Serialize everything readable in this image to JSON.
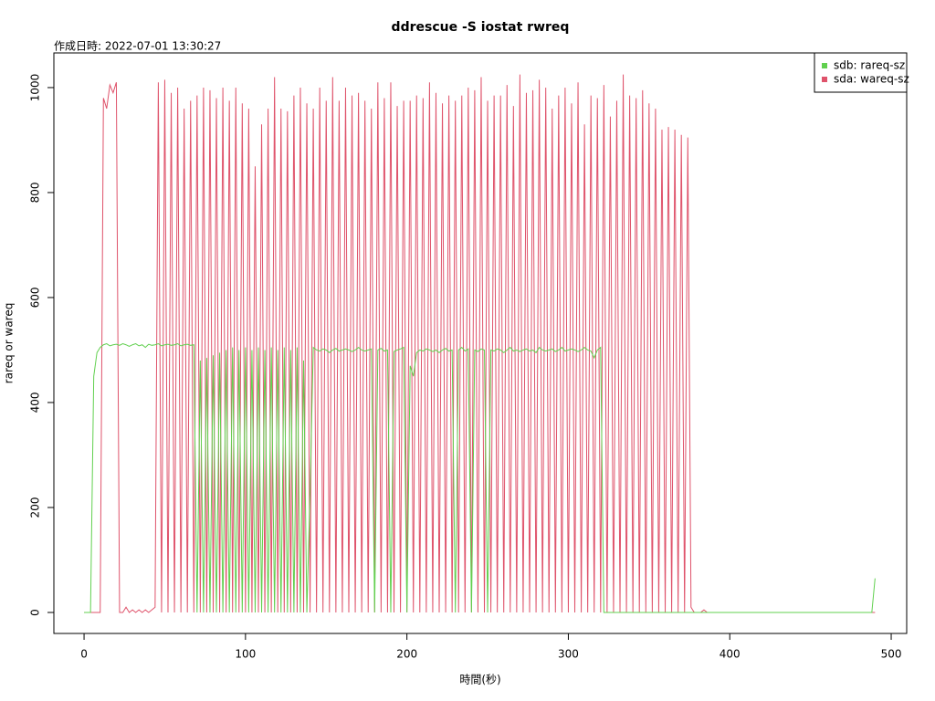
{
  "chart_data": {
    "type": "line",
    "title": "ddrescue -S iostat rwreq",
    "subtitle": "作成日時: 2022-07-01 13:30:27",
    "x_label": "時間(秒)",
    "y_label": "rareq or wareq",
    "legend": "topright",
    "xlim": [
      -18.7,
      509.6
    ],
    "ylim": [
      -40,
      1066
    ],
    "xticks": [
      0,
      100,
      200,
      300,
      400,
      500
    ],
    "yticks": [
      0,
      200,
      400,
      600,
      800,
      1000
    ],
    "x": [
      0,
      2,
      4,
      6,
      8,
      10,
      12,
      14,
      16,
      18,
      20,
      22,
      24,
      26,
      28,
      30,
      32,
      34,
      36,
      38,
      40,
      42,
      44,
      46,
      48,
      50,
      52,
      54,
      56,
      58,
      60,
      62,
      64,
      66,
      68,
      70,
      72,
      74,
      76,
      78,
      80,
      82,
      84,
      86,
      88,
      90,
      92,
      94,
      96,
      98,
      100,
      102,
      104,
      106,
      108,
      110,
      112,
      114,
      116,
      118,
      120,
      122,
      124,
      126,
      128,
      130,
      132,
      134,
      136,
      138,
      140,
      142,
      144,
      146,
      148,
      150,
      152,
      154,
      156,
      158,
      160,
      162,
      164,
      166,
      168,
      170,
      172,
      174,
      176,
      178,
      180,
      182,
      184,
      186,
      188,
      190,
      192,
      194,
      196,
      198,
      200,
      202,
      204,
      206,
      208,
      210,
      212,
      214,
      216,
      218,
      220,
      222,
      224,
      226,
      228,
      230,
      232,
      234,
      236,
      238,
      240,
      242,
      244,
      246,
      248,
      250,
      252,
      254,
      256,
      258,
      260,
      262,
      264,
      266,
      268,
      270,
      272,
      274,
      276,
      278,
      280,
      282,
      284,
      286,
      288,
      290,
      292,
      294,
      296,
      298,
      300,
      302,
      304,
      306,
      308,
      310,
      312,
      314,
      316,
      318,
      320,
      322,
      324,
      326,
      328,
      330,
      332,
      334,
      336,
      338,
      340,
      342,
      344,
      346,
      348,
      350,
      352,
      354,
      356,
      358,
      360,
      362,
      364,
      366,
      368,
      370,
      372,
      374,
      376,
      378,
      380,
      382,
      384,
      386,
      388,
      390,
      392,
      394,
      396,
      398,
      400,
      402,
      404,
      406,
      408,
      410,
      412,
      414,
      416,
      418,
      420,
      422,
      424,
      426,
      428,
      430,
      432,
      434,
      436,
      438,
      440,
      442,
      444,
      446,
      448,
      450,
      452,
      454,
      456,
      458,
      460,
      462,
      464,
      466,
      468,
      470,
      472,
      474,
      476,
      478,
      480,
      482,
      484,
      486,
      488,
      490
    ],
    "series": [
      {
        "name": "sda: wareq-sz",
        "color": "#DF536B",
        "values": [
          0,
          0,
          0,
          0,
          0,
          0,
          980,
          960,
          1005,
          990,
          1010,
          0,
          0,
          10,
          0,
          5,
          0,
          5,
          0,
          5,
          0,
          5,
          10,
          1010,
          0,
          1015,
          0,
          990,
          0,
          1000,
          0,
          960,
          0,
          975,
          0,
          985,
          0,
          1000,
          0,
          995,
          0,
          980,
          0,
          1000,
          0,
          975,
          0,
          1000,
          0,
          970,
          0,
          960,
          0,
          850,
          0,
          930,
          0,
          960,
          0,
          1020,
          0,
          960,
          0,
          955,
          0,
          985,
          0,
          1000,
          0,
          970,
          0,
          960,
          0,
          1000,
          0,
          975,
          0,
          1020,
          0,
          975,
          0,
          1000,
          0,
          985,
          0,
          990,
          0,
          975,
          0,
          960,
          0,
          1010,
          0,
          980,
          0,
          1010,
          0,
          965,
          0,
          975,
          0,
          975,
          0,
          985,
          0,
          980,
          0,
          1010,
          0,
          990,
          0,
          970,
          0,
          985,
          0,
          975,
          0,
          985,
          0,
          1000,
          0,
          995,
          0,
          1020,
          0,
          975,
          0,
          985,
          0,
          985,
          0,
          1005,
          0,
          965,
          0,
          1025,
          0,
          990,
          0,
          995,
          0,
          1015,
          0,
          1000,
          0,
          960,
          0,
          985,
          0,
          1000,
          0,
          970,
          0,
          1010,
          0,
          930,
          0,
          985,
          0,
          980,
          0,
          1005,
          0,
          945,
          0,
          975,
          0,
          1025,
          0,
          985,
          0,
          980,
          0,
          995,
          0,
          970,
          0,
          960,
          0,
          920,
          0,
          925,
          0,
          920,
          0,
          910,
          0,
          905,
          10,
          0,
          0,
          0,
          5,
          0,
          0,
          0,
          0,
          0,
          0,
          0,
          0,
          0,
          0,
          0,
          0,
          0,
          0,
          0,
          0,
          0,
          0,
          0,
          0,
          0,
          0,
          0,
          0,
          0,
          0,
          0,
          0,
          0,
          0,
          0,
          0,
          0,
          0,
          0,
          0,
          0,
          0,
          0,
          0,
          0,
          0,
          0,
          0,
          0,
          0,
          0,
          0,
          0,
          0,
          0,
          0,
          0
        ]
      },
      {
        "name": "sdb: rareq-sz",
        "color": "#61D04F",
        "values": [
          0,
          0,
          0,
          450,
          495,
          505,
          510,
          512,
          508,
          510,
          511,
          509,
          512,
          510,
          507,
          510,
          512,
          508,
          510,
          505,
          511,
          509,
          510,
          512,
          508,
          510,
          511,
          509,
          510,
          512,
          508,
          510,
          511,
          509,
          510,
          0,
          480,
          0,
          485,
          0,
          490,
          0,
          495,
          0,
          500,
          0,
          505,
          0,
          500,
          0,
          505,
          0,
          500,
          0,
          505,
          0,
          500,
          0,
          505,
          0,
          500,
          0,
          505,
          0,
          500,
          0,
          505,
          0,
          480,
          0,
          230,
          505,
          500,
          498,
          502,
          500,
          495,
          500,
          503,
          498,
          500,
          502,
          500,
          497,
          500,
          505,
          500,
          498,
          500,
          502,
          0,
          500,
          503,
          498,
          500,
          0,
          497,
          500,
          502,
          505,
          0,
          470,
          450,
          495,
          500,
          498,
          502,
          500,
          497,
          500,
          495,
          500,
          503,
          498,
          500,
          0,
          500,
          505,
          498,
          502,
          0,
          500,
          497,
          502,
          500,
          0,
          500,
          498,
          502,
          500,
          495,
          500,
          505,
          498,
          500,
          497,
          500,
          502,
          498,
          500,
          495,
          505,
          500,
          498,
          500,
          502,
          497,
          500,
          505,
          498,
          500,
          502,
          500,
          497,
          500,
          505,
          500,
          498,
          485,
          500,
          505,
          0,
          0,
          0,
          0,
          0,
          0,
          0,
          0,
          0,
          0,
          0,
          0,
          0,
          0,
          0,
          0,
          0,
          0,
          0,
          0,
          0,
          0,
          0,
          0,
          0,
          0,
          0,
          0,
          0,
          0,
          0,
          0,
          0,
          0,
          0,
          0,
          0,
          0,
          0,
          0,
          0,
          0,
          0,
          0,
          0,
          0,
          0,
          0,
          0,
          0,
          0,
          0,
          0,
          0,
          0,
          0,
          0,
          0,
          0,
          0,
          0,
          0,
          0,
          0,
          0,
          0,
          0,
          0,
          0,
          0,
          0,
          0,
          0,
          0,
          0,
          0,
          0,
          0,
          0,
          0,
          0,
          0,
          0,
          0,
          65
        ]
      }
    ]
  }
}
